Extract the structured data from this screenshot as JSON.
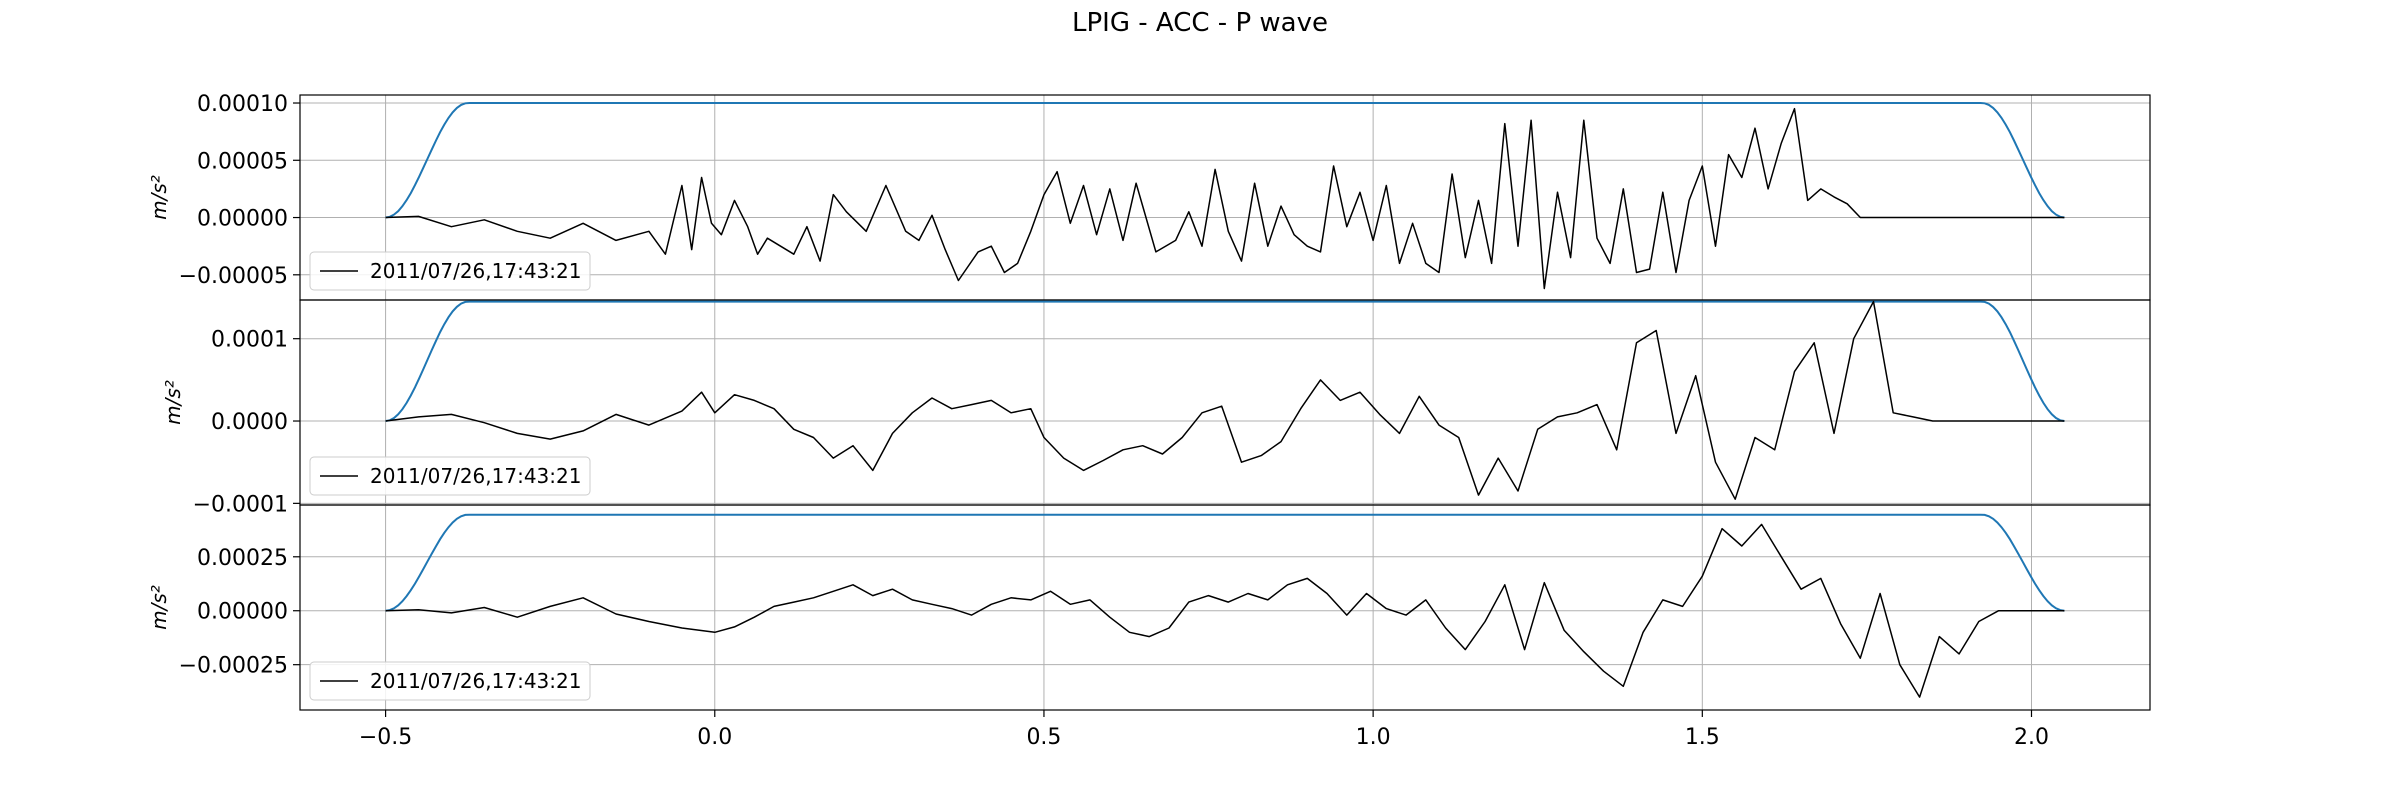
{
  "title": "LPIG - ACC - P wave",
  "colors": {
    "signal": "#000000",
    "taper": "#1f77b4",
    "grid": "#b0b0b0",
    "axes": "#000000"
  },
  "chart_data": {
    "type": "line",
    "title": "LPIG - ACC - P wave",
    "shared_x": true,
    "xlim": [
      -0.63,
      2.18
    ],
    "xticks": [
      -0.5,
      0.0,
      0.5,
      1.0,
      1.5,
      2.0
    ],
    "xtick_labels": [
      "−0.5",
      "0.0",
      "0.5",
      "1.0",
      "1.5",
      "2.0"
    ],
    "grid": true,
    "taper": {
      "x_start": -0.5,
      "x_end": 2.05,
      "ramp_up_end": -0.375,
      "ramp_down_start": 1.925,
      "description": "cosine taper window scaled to each panel's peak amplitude"
    },
    "panels": [
      {
        "ylabel": "m/s²",
        "ylim": [
          -7.2e-05,
          0.000107
        ],
        "yticks": [
          -5e-05,
          0.0,
          5e-05,
          0.0001
        ],
        "ytick_labels": [
          "−0.00005",
          "0.00000",
          "0.00005",
          "0.00010"
        ],
        "legend": {
          "label": "2011/07/26,17:43:21",
          "position": "lower-left"
        },
        "taper_peak": 0.0001,
        "signal": {
          "x": [
            -0.5,
            -0.45,
            -0.4,
            -0.35,
            -0.3,
            -0.25,
            -0.2,
            -0.15,
            -0.1,
            -0.075,
            -0.05,
            -0.035,
            -0.02,
            -0.005,
            0.01,
            0.03,
            0.05,
            0.065,
            0.08,
            0.1,
            0.12,
            0.14,
            0.16,
            0.18,
            0.2,
            0.23,
            0.26,
            0.29,
            0.31,
            0.33,
            0.35,
            0.37,
            0.4,
            0.42,
            0.44,
            0.46,
            0.48,
            0.5,
            0.52,
            0.54,
            0.56,
            0.58,
            0.6,
            0.62,
            0.64,
            0.67,
            0.7,
            0.72,
            0.74,
            0.76,
            0.78,
            0.8,
            0.82,
            0.84,
            0.86,
            0.88,
            0.9,
            0.92,
            0.94,
            0.96,
            0.98,
            1.0,
            1.02,
            1.04,
            1.06,
            1.08,
            1.1,
            1.12,
            1.14,
            1.16,
            1.18,
            1.2,
            1.22,
            1.24,
            1.26,
            1.28,
            1.3,
            1.32,
            1.34,
            1.36,
            1.38,
            1.4,
            1.42,
            1.44,
            1.46,
            1.48,
            1.5,
            1.52,
            1.54,
            1.56,
            1.58,
            1.6,
            1.62,
            1.64,
            1.66,
            1.68,
            1.7,
            1.72,
            1.74,
            1.76,
            1.78,
            1.8,
            1.82,
            1.84,
            1.86,
            1.88,
            1.9,
            1.92,
            1.94,
            1.96,
            1.98,
            2.0,
            2.02,
            2.05
          ],
          "y": [
            0,
            1e-06,
            -8e-06,
            -2e-06,
            -1.2e-05,
            -1.8e-05,
            -5e-06,
            -2e-05,
            -1.2e-05,
            -3.2e-05,
            2.8e-05,
            -2.8e-05,
            3.5e-05,
            -5e-06,
            -1.5e-05,
            1.5e-05,
            -8e-06,
            -3.2e-05,
            -1.8e-05,
            -2.5e-05,
            -3.2e-05,
            -8e-06,
            -3.8e-05,
            2e-05,
            5e-06,
            -1.2e-05,
            2.8e-05,
            -1.2e-05,
            -2e-05,
            2e-06,
            -2.8e-05,
            -5.5e-05,
            -3e-05,
            -2.5e-05,
            -4.8e-05,
            -4e-05,
            -1.2e-05,
            2e-05,
            4e-05,
            -5e-06,
            2.8e-05,
            -1.5e-05,
            2.5e-05,
            -2e-05,
            3e-05,
            -3e-05,
            -2e-05,
            5e-06,
            -2.5e-05,
            4.2e-05,
            -1.2e-05,
            -3.8e-05,
            3e-05,
            -2.5e-05,
            1e-05,
            -1.5e-05,
            -2.5e-05,
            -3e-05,
            4.5e-05,
            -8e-06,
            2.2e-05,
            -2e-05,
            2.8e-05,
            -4e-05,
            -5e-06,
            -4e-05,
            -4.8e-05,
            3.8e-05,
            -3.5e-05,
            1.5e-05,
            -4e-05,
            8.2e-05,
            -2.5e-05,
            8.5e-05,
            -6.2e-05,
            2.2e-05,
            -3.5e-05,
            8.5e-05,
            -1.8e-05,
            -4e-05,
            2.5e-05,
            -4.8e-05,
            -4.5e-05,
            2.2e-05,
            -4.8e-05,
            1.5e-05,
            4.5e-05,
            -2.5e-05,
            5.5e-05,
            3.5e-05,
            7.8e-05,
            2.5e-05,
            6.5e-05,
            9.5e-05,
            1.5e-05,
            2.5e-05,
            1.8e-05,
            1.2e-05,
            0,
            0,
            0,
            0,
            0,
            0,
            0,
            0,
            0,
            0,
            0,
            0,
            0,
            0,
            0,
            0
          ]
        }
      },
      {
        "ylabel": "m/s²",
        "ylim": [
          -0.000102,
          0.000147
        ],
        "yticks": [
          -0.0001,
          0.0,
          0.0001
        ],
        "ytick_labels": [
          "−0.0001",
          "0.0000",
          "0.0001"
        ],
        "legend": {
          "label": "2011/07/26,17:43:21",
          "position": "lower-left"
        },
        "taper_peak": 0.000145,
        "signal": {
          "x": [
            -0.5,
            -0.45,
            -0.4,
            -0.35,
            -0.3,
            -0.25,
            -0.2,
            -0.15,
            -0.1,
            -0.05,
            -0.02,
            0.0,
            0.03,
            0.06,
            0.09,
            0.12,
            0.15,
            0.18,
            0.21,
            0.24,
            0.27,
            0.3,
            0.33,
            0.36,
            0.39,
            0.42,
            0.45,
            0.48,
            0.5,
            0.53,
            0.56,
            0.59,
            0.62,
            0.65,
            0.68,
            0.71,
            0.74,
            0.77,
            0.8,
            0.83,
            0.86,
            0.89,
            0.92,
            0.95,
            0.98,
            1.01,
            1.04,
            1.07,
            1.1,
            1.13,
            1.16,
            1.19,
            1.22,
            1.25,
            1.28,
            1.31,
            1.34,
            1.37,
            1.4,
            1.43,
            1.46,
            1.49,
            1.52,
            1.55,
            1.58,
            1.61,
            1.64,
            1.67,
            1.7,
            1.73,
            1.76,
            1.79,
            1.82,
            1.85,
            1.88,
            1.91,
            1.94,
            1.97,
            2.0,
            2.05
          ],
          "y": [
            0,
            5e-06,
            8e-06,
            -2e-06,
            -1.5e-05,
            -2.2e-05,
            -1.2e-05,
            8e-06,
            -5e-06,
            1.2e-05,
            3.5e-05,
            1e-05,
            3.2e-05,
            2.5e-05,
            1.5e-05,
            -1e-05,
            -2e-05,
            -4.5e-05,
            -3e-05,
            -6e-05,
            -1.5e-05,
            1e-05,
            2.8e-05,
            1.5e-05,
            2e-05,
            2.5e-05,
            1e-05,
            1.5e-05,
            -2e-05,
            -4.5e-05,
            -6e-05,
            -4.8e-05,
            -3.5e-05,
            -3e-05,
            -4e-05,
            -2e-05,
            1e-05,
            1.8e-05,
            -5e-05,
            -4.2e-05,
            -2.5e-05,
            1.5e-05,
            5e-05,
            2.5e-05,
            3.5e-05,
            8e-06,
            -1.5e-05,
            3e-05,
            -5e-06,
            -2e-05,
            -9e-05,
            -4.5e-05,
            -8.5e-05,
            -1e-05,
            5e-06,
            1e-05,
            2e-05,
            -3.5e-05,
            9.5e-05,
            0.00011,
            -1.5e-05,
            5.5e-05,
            -5e-05,
            -9.5e-05,
            -2e-05,
            -3.5e-05,
            6e-05,
            9.5e-05,
            -1.5e-05,
            0.0001,
            0.000145,
            1e-05,
            5e-06,
            0,
            0,
            0,
            0,
            0,
            0,
            0
          ]
        }
      },
      {
        "ylabel": "m/s²",
        "ylim": [
          -0.00046,
          0.00049
        ],
        "yticks": [
          -0.00025,
          0.0,
          0.00025
        ],
        "ytick_labels": [
          "−0.00025",
          "0.00000",
          "0.00025"
        ],
        "legend": {
          "label": "2011/07/26,17:43:21",
          "position": "lower-left"
        },
        "taper_peak": 0.000445,
        "signal": {
          "x": [
            -0.5,
            -0.45,
            -0.4,
            -0.35,
            -0.3,
            -0.25,
            -0.2,
            -0.15,
            -0.1,
            -0.05,
            0.0,
            0.03,
            0.06,
            0.09,
            0.12,
            0.15,
            0.18,
            0.21,
            0.24,
            0.27,
            0.3,
            0.33,
            0.36,
            0.39,
            0.42,
            0.45,
            0.48,
            0.51,
            0.54,
            0.57,
            0.6,
            0.63,
            0.66,
            0.69,
            0.72,
            0.75,
            0.78,
            0.81,
            0.84,
            0.87,
            0.9,
            0.93,
            0.96,
            0.99,
            1.02,
            1.05,
            1.08,
            1.11,
            1.14,
            1.17,
            1.2,
            1.23,
            1.26,
            1.29,
            1.32,
            1.35,
            1.38,
            1.41,
            1.44,
            1.47,
            1.5,
            1.53,
            1.56,
            1.59,
            1.62,
            1.65,
            1.68,
            1.71,
            1.74,
            1.77,
            1.8,
            1.83,
            1.86,
            1.89,
            1.92,
            1.95,
            1.98,
            2.01,
            2.05
          ],
          "y": [
            0,
            5e-06,
            -1e-05,
            1.5e-05,
            -3e-05,
            2e-05,
            6e-05,
            -1.5e-05,
            -5e-05,
            -8e-05,
            -0.0001,
            -7.5e-05,
            -3e-05,
            2e-05,
            4e-05,
            6e-05,
            9e-05,
            0.00012,
            7e-05,
            0.0001,
            5e-05,
            3e-05,
            1e-05,
            -2e-05,
            3e-05,
            6e-05,
            5e-05,
            9e-05,
            3e-05,
            5e-05,
            -3e-05,
            -0.0001,
            -0.00012,
            -8e-05,
            4e-05,
            7e-05,
            4e-05,
            8e-05,
            5e-05,
            0.00012,
            0.00015,
            8e-05,
            -2e-05,
            8e-05,
            1e-05,
            -2e-05,
            5e-05,
            -8e-05,
            -0.00018,
            -5e-05,
            0.00012,
            -0.00018,
            0.00013,
            -9e-05,
            -0.00019,
            -0.00028,
            -0.00035,
            -0.0001,
            5e-05,
            2e-05,
            0.00016,
            0.00038,
            0.0003,
            0.0004,
            0.00025,
            0.0001,
            0.00015,
            -6e-05,
            -0.00022,
            8e-05,
            -0.00025,
            -0.0004,
            -0.00012,
            -0.0002,
            -5e-05,
            0,
            0,
            0,
            0
          ]
        }
      }
    ]
  }
}
